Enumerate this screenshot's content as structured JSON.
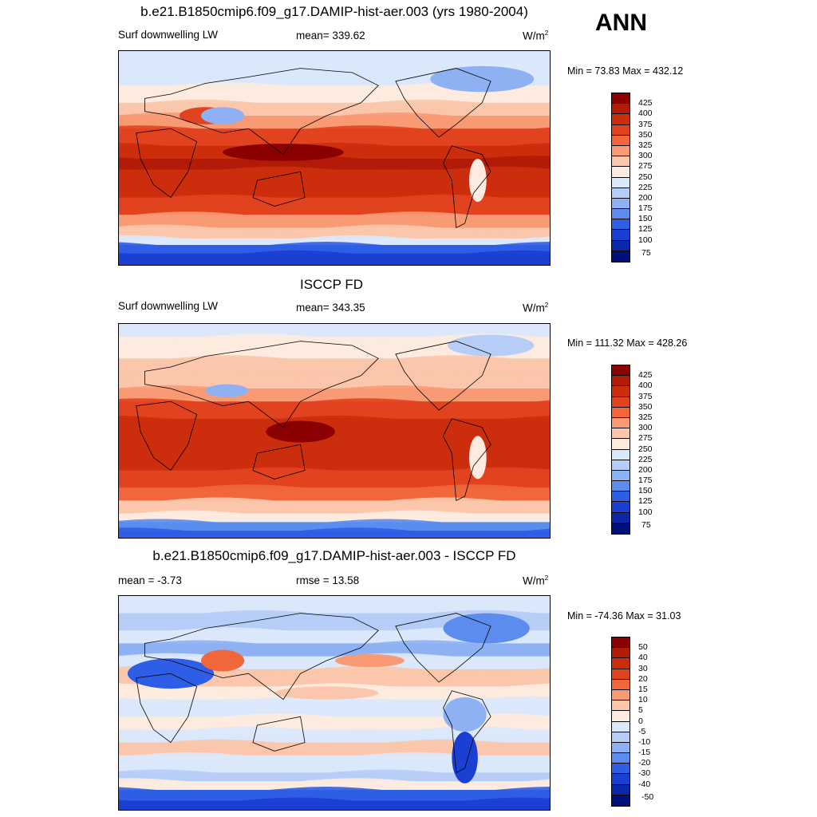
{
  "season": "ANN",
  "panels": [
    {
      "title": "b.e21.B1850cmip6.f09_g17.DAMIP-hist-aer.003 (yrs 1980-2004)",
      "left_label": "Surf downwelling LW",
      "center_label": "mean= 339.62",
      "units_base": "W/m",
      "units_exp": "2",
      "minmax": "Min =  73.83 Max = 432.12"
    },
    {
      "title": "ISCCP FD",
      "left_label": "Surf downwelling LW",
      "center_label": "mean= 343.35",
      "units_base": "W/m",
      "units_exp": "2",
      "minmax": "Min = 111.32 Max = 428.26"
    },
    {
      "title": "b.e21.B1850cmip6.f09_g17.DAMIP-hist-aer.003 - ISCCP FD",
      "left_label": "mean =  -3.73",
      "center_label": "rmse =  13.58",
      "units_base": "W/m",
      "units_exp": "2",
      "minmax": "Min = -74.36 Max =  31.03"
    }
  ],
  "chart_data": [
    {
      "type": "heatmap",
      "title": "b.e21.B1850cmip6.f09_g17.DAMIP-hist-aer.003 (yrs 1980-2004)",
      "variable": "Surf downwelling LW",
      "units": "W/m2",
      "mean": 339.62,
      "min": 73.83,
      "max": 432.12,
      "colorbar_levels": [
        425,
        400,
        375,
        350,
        325,
        300,
        275,
        250,
        225,
        200,
        175,
        150,
        125,
        100,
        75
      ],
      "colorbar_colors": [
        "#8b0000",
        "#b11b07",
        "#cc2d0c",
        "#e2431f",
        "#f2663c",
        "#f89a74",
        "#fbc6ab",
        "#fdebdf",
        "#dbe8fb",
        "#b6cdf7",
        "#8eb1f3",
        "#5b8cee",
        "#2f5ee6",
        "#1b3fd2",
        "#0c28a8",
        "#00107a"
      ]
    },
    {
      "type": "heatmap",
      "title": "ISCCP FD",
      "variable": "Surf downwelling LW",
      "units": "W/m2",
      "mean": 343.35,
      "min": 111.32,
      "max": 428.26,
      "colorbar_levels": [
        425,
        400,
        375,
        350,
        325,
        300,
        275,
        250,
        225,
        200,
        175,
        150,
        125,
        100,
        75
      ],
      "colorbar_colors": [
        "#8b0000",
        "#b11b07",
        "#cc2d0c",
        "#e2431f",
        "#f2663c",
        "#f89a74",
        "#fbc6ab",
        "#fdebdf",
        "#dbe8fb",
        "#b6cdf7",
        "#8eb1f3",
        "#5b8cee",
        "#2f5ee6",
        "#1b3fd2",
        "#0c28a8",
        "#00107a"
      ]
    },
    {
      "type": "heatmap",
      "title": "b.e21.B1850cmip6.f09_g17.DAMIP-hist-aer.003 - ISCCP FD",
      "units": "W/m2",
      "mean": -3.73,
      "rmse": 13.58,
      "min": -74.36,
      "max": 31.03,
      "colorbar_levels": [
        50,
        40,
        30,
        20,
        15,
        10,
        5,
        0,
        -5,
        -10,
        -15,
        -20,
        -30,
        -40,
        -50
      ],
      "colorbar_colors": [
        "#8b0000",
        "#b11b07",
        "#cc2d0c",
        "#e2431f",
        "#f2663c",
        "#f89a74",
        "#fbc6ab",
        "#fdebdf",
        "#dbe8fb",
        "#b6cdf7",
        "#8eb1f3",
        "#5b8cee",
        "#2f5ee6",
        "#1b3fd2",
        "#0c28a8",
        "#00107a"
      ]
    }
  ]
}
